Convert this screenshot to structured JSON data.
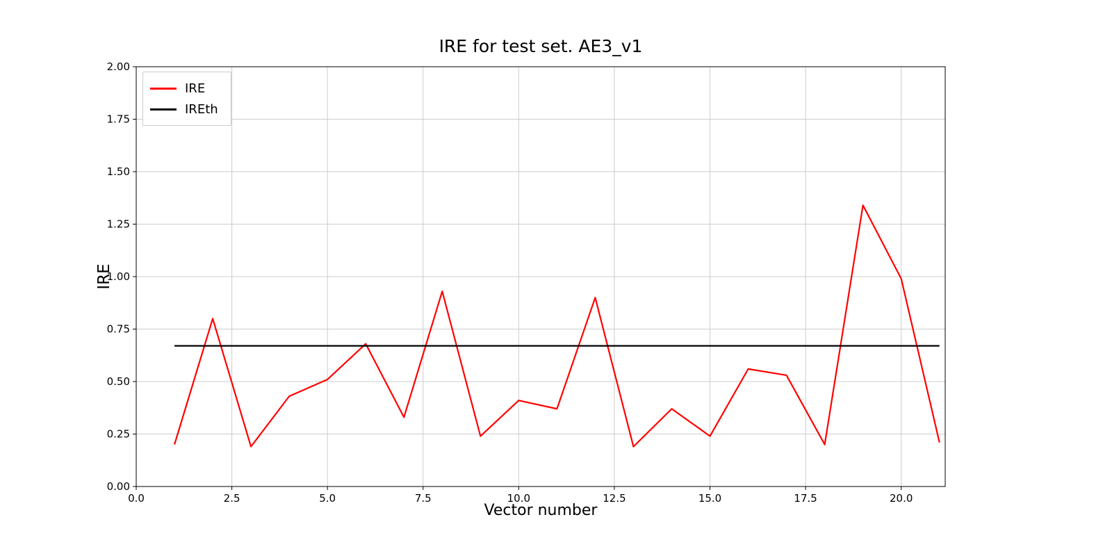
{
  "chart_data": {
    "type": "line",
    "title": "IRE for test set. AE3_v1",
    "xlabel": "Vector number",
    "ylabel": "IRE",
    "xlim": [
      0,
      21.15
    ],
    "ylim": [
      0.0,
      2.0
    ],
    "xticks": [
      0.0,
      2.5,
      5.0,
      7.5,
      10.0,
      12.5,
      15.0,
      17.5,
      20.0
    ],
    "xtick_labels": [
      "0.0",
      "2.5",
      "5.0",
      "7.5",
      "10.0",
      "12.5",
      "15.0",
      "17.5",
      "20.0"
    ],
    "yticks": [
      0.0,
      0.25,
      0.5,
      0.75,
      1.0,
      1.25,
      1.5,
      1.75,
      2.0
    ],
    "ytick_labels": [
      "0.00",
      "0.25",
      "0.50",
      "0.75",
      "1.00",
      "1.25",
      "1.50",
      "1.75",
      "2.00"
    ],
    "grid": true,
    "grid_color": "#cccccc",
    "legend_position": "upper left",
    "series": [
      {
        "name": "IRE",
        "color": "#ff0000",
        "x": [
          1,
          2,
          3,
          4,
          5,
          6,
          7,
          8,
          9,
          10,
          11,
          12,
          13,
          14,
          15,
          16,
          17,
          18,
          19,
          20,
          21
        ],
        "y": [
          0.2,
          0.8,
          0.19,
          0.43,
          0.51,
          0.68,
          0.33,
          0.93,
          0.24,
          0.41,
          0.37,
          0.9,
          0.19,
          0.37,
          0.24,
          0.56,
          0.53,
          0.2,
          1.34,
          0.99,
          0.21
        ]
      },
      {
        "name": "IREth",
        "color": "#000000",
        "x": [
          1,
          21
        ],
        "y": [
          0.67,
          0.67
        ]
      }
    ]
  }
}
